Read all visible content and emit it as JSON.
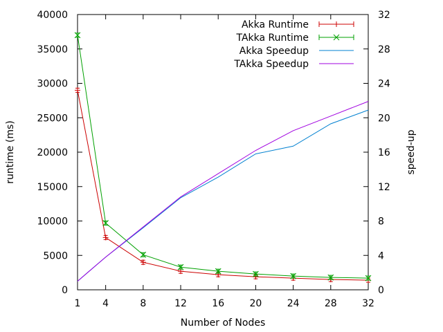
{
  "chart_data": {
    "type": "line",
    "title": "",
    "xlabel": "Number of Nodes",
    "ylabel": "runtime (ms)",
    "y2label": "speed-up",
    "x": [
      1,
      4,
      8,
      12,
      16,
      20,
      24,
      28,
      32
    ],
    "x_ticks": [
      1,
      4,
      8,
      12,
      16,
      20,
      24,
      28,
      32
    ],
    "xlim": [
      1,
      32
    ],
    "ylim": [
      0,
      40000
    ],
    "y_ticks": [
      0,
      5000,
      10000,
      15000,
      20000,
      25000,
      30000,
      35000,
      40000
    ],
    "y2lim": [
      0,
      32
    ],
    "y2_ticks": [
      0,
      4,
      8,
      12,
      16,
      20,
      24,
      28,
      32
    ],
    "grid": false,
    "legend_position": "top-right",
    "series": [
      {
        "name": "Akka Runtime",
        "axis": "left",
        "color": "#cc0000",
        "marker": "plus",
        "errorbars": true,
        "values": [
          29000,
          7600,
          4000,
          2700,
          2200,
          1900,
          1700,
          1500,
          1400
        ]
      },
      {
        "name": "TAkka Runtime",
        "axis": "left",
        "color": "#00a000",
        "marker": "cross",
        "errorbars": true,
        "values": [
          37000,
          9700,
          5100,
          3300,
          2700,
          2300,
          2000,
          1800,
          1700
        ]
      },
      {
        "name": "Akka Speedup",
        "axis": "right",
        "color": "#0080d0",
        "marker": "none",
        "values": [
          1,
          3.8,
          7.2,
          10.7,
          13.1,
          15.8,
          16.7,
          19.3,
          20.9
        ]
      },
      {
        "name": "TAkka Speedup",
        "axis": "right",
        "color": "#a000e0",
        "marker": "none",
        "values": [
          1,
          3.8,
          7.3,
          10.8,
          13.5,
          16.2,
          18.5,
          20.2,
          21.9
        ]
      }
    ]
  }
}
